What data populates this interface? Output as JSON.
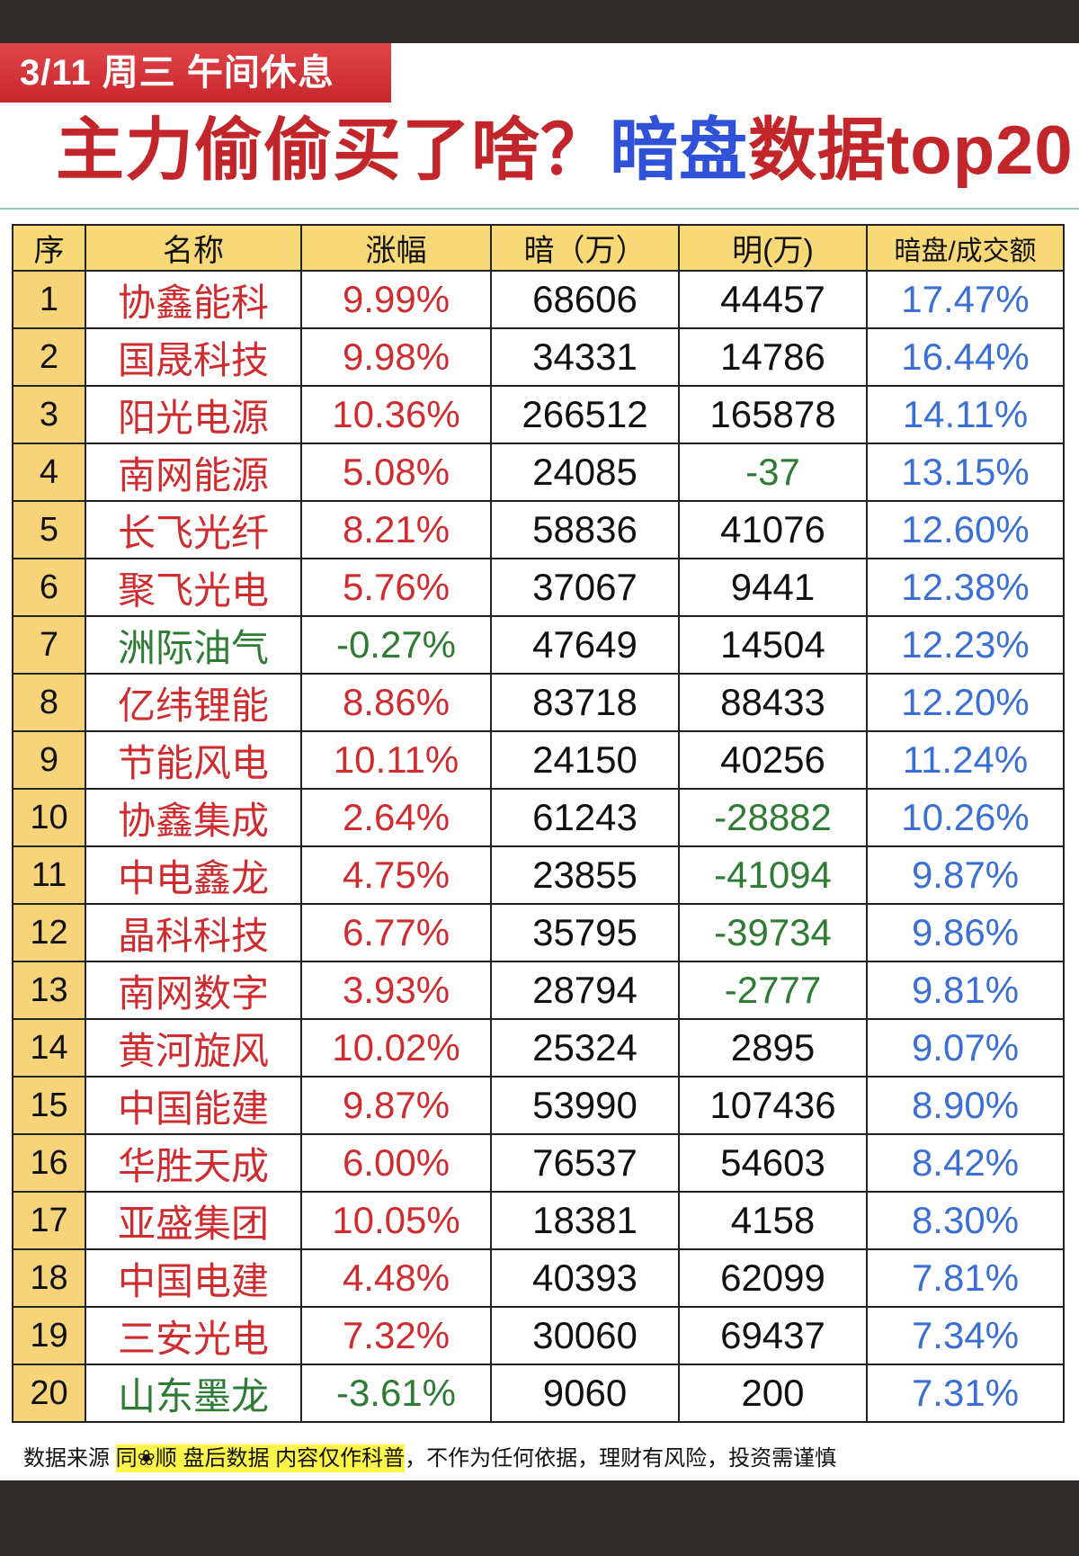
{
  "header": {
    "tag": "3/11 周三  午间休息",
    "title_red": "主力偷偷买了啥？",
    "title_blue": "暗盘",
    "title_red2": "数据top20"
  },
  "colors": {
    "up": "#cf2c30",
    "down": "#2e7b34",
    "ratio": "#3a6fd4",
    "header_bg": "#f8d978"
  },
  "table": {
    "columns": [
      "序",
      "名称",
      "涨幅",
      "暗（万）",
      "明(万)",
      "暗盘/成交额"
    ],
    "rows": [
      {
        "idx": "1",
        "name": "协鑫能科",
        "change": "9.99%",
        "dark": "68606",
        "lit": "44457",
        "ratio": "17.47%"
      },
      {
        "idx": "2",
        "name": "国晟科技",
        "change": "9.98%",
        "dark": "34331",
        "lit": "14786",
        "ratio": "16.44%"
      },
      {
        "idx": "3",
        "name": "阳光电源",
        "change": "10.36%",
        "dark": "266512",
        "lit": "165878",
        "ratio": "14.11%"
      },
      {
        "idx": "4",
        "name": "南网能源",
        "change": "5.08%",
        "dark": "24085",
        "lit": "-37",
        "ratio": "13.15%"
      },
      {
        "idx": "5",
        "name": "长飞光纤",
        "change": "8.21%",
        "dark": "58836",
        "lit": "41076",
        "ratio": "12.60%"
      },
      {
        "idx": "6",
        "name": "聚飞光电",
        "change": "5.76%",
        "dark": "37067",
        "lit": "9441",
        "ratio": "12.38%"
      },
      {
        "idx": "7",
        "name": "洲际油气",
        "change": "-0.27%",
        "dark": "47649",
        "lit": "14504",
        "ratio": "12.23%"
      },
      {
        "idx": "8",
        "name": "亿纬锂能",
        "change": "8.86%",
        "dark": "83718",
        "lit": "88433",
        "ratio": "12.20%"
      },
      {
        "idx": "9",
        "name": "节能风电",
        "change": "10.11%",
        "dark": "24150",
        "lit": "40256",
        "ratio": "11.24%"
      },
      {
        "idx": "10",
        "name": "协鑫集成",
        "change": "2.64%",
        "dark": "61243",
        "lit": "-28882",
        "ratio": "10.26%"
      },
      {
        "idx": "11",
        "name": "中电鑫龙",
        "change": "4.75%",
        "dark": "23855",
        "lit": "-41094",
        "ratio": "9.87%"
      },
      {
        "idx": "12",
        "name": "晶科科技",
        "change": "6.77%",
        "dark": "35795",
        "lit": "-39734",
        "ratio": "9.86%"
      },
      {
        "idx": "13",
        "name": "南网数字",
        "change": "3.93%",
        "dark": "28794",
        "lit": "-2777",
        "ratio": "9.81%"
      },
      {
        "idx": "14",
        "name": "黄河旋风",
        "change": "10.02%",
        "dark": "25324",
        "lit": "2895",
        "ratio": "9.07%"
      },
      {
        "idx": "15",
        "name": "中国能建",
        "change": "9.87%",
        "dark": "53990",
        "lit": "107436",
        "ratio": "8.90%"
      },
      {
        "idx": "16",
        "name": "华胜天成",
        "change": "6.00%",
        "dark": "76537",
        "lit": "54603",
        "ratio": "8.42%"
      },
      {
        "idx": "17",
        "name": "亚盛集团",
        "change": "10.05%",
        "dark": "18381",
        "lit": "4158",
        "ratio": "8.30%"
      },
      {
        "idx": "18",
        "name": "中国电建",
        "change": "4.48%",
        "dark": "40393",
        "lit": "62099",
        "ratio": "7.81%"
      },
      {
        "idx": "19",
        "name": "三安光电",
        "change": "7.32%",
        "dark": "30060",
        "lit": "69437",
        "ratio": "7.34%"
      },
      {
        "idx": "20",
        "name": "山东墨龙",
        "change": "-3.61%",
        "dark": "9060",
        "lit": "200",
        "ratio": "7.31%"
      }
    ]
  },
  "footer": {
    "prefix": "数据来源 ",
    "highlight": "同❀顺  盘后数据  内容仅作科普",
    "suffix": "，不作为任何依据，理财有风险，投资需谨慎"
  }
}
